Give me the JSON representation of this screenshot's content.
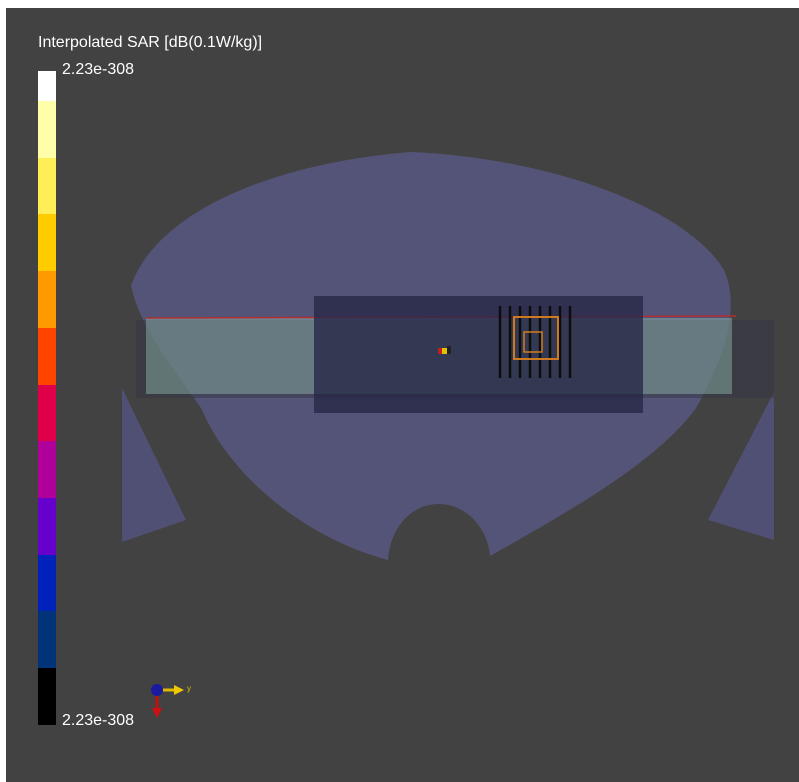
{
  "colorbar": {
    "title": "Interpolated SAR [dB(0.1W/kg)]",
    "max_label": "2.23e-308",
    "min_label": "2.23e-308",
    "colors_top_to_bottom": [
      "#ffffff",
      "#ffffaa",
      "#ffee55",
      "#ffcc00",
      "#ff9900",
      "#ff4400",
      "#e0004a",
      "#b0009a",
      "#6600cc",
      "#0022bb",
      "#003377",
      "#000000"
    ]
  },
  "scene": {
    "phantom_color": "#5b5b8c",
    "slab_color": "#8ab0a8",
    "board_color": "#262646",
    "antenna_color": "#d07a20",
    "axis_label": "y"
  }
}
